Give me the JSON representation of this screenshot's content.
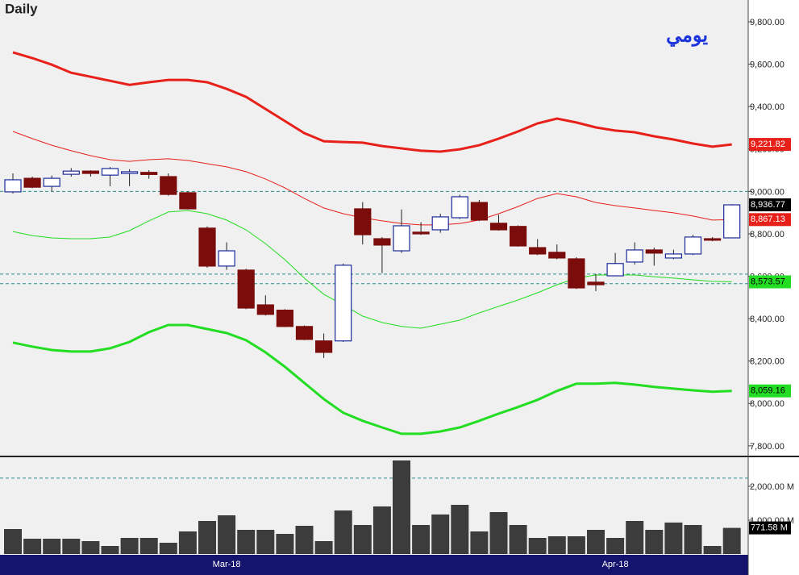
{
  "chart_data": [
    {
      "type": "candlestick",
      "title": "Daily",
      "subtitle": "يومي",
      "categories": [
        null,
        null,
        null,
        null,
        null,
        null,
        null,
        null,
        null,
        null,
        null,
        "Mar-18",
        null,
        null,
        null,
        null,
        null,
        null,
        null,
        null,
        null,
        null,
        null,
        null,
        null,
        null,
        null,
        null,
        null,
        null,
        null,
        "Apr-18",
        null,
        null,
        null,
        null,
        null,
        null
      ],
      "open": [
        8998,
        9062,
        9024,
        9081,
        9096,
        9077,
        9085,
        9090,
        9070,
        8994,
        8827,
        8648,
        8629,
        8465,
        8440,
        8363,
        8295,
        8295,
        8918,
        8777,
        8720,
        8808,
        8819,
        8876,
        8948,
        8850,
        8835,
        8735,
        8713,
        8682,
        8572,
        8602,
        8667,
        8724,
        8686,
        8705,
        8777,
        8781
      ],
      "high": [
        9085,
        9070,
        9075,
        9110,
        9100,
        9115,
        9105,
        9100,
        9085,
        9000,
        8835,
        8760,
        8635,
        8510,
        8445,
        8368,
        8330,
        8660,
        8950,
        8785,
        8915,
        8855,
        8895,
        8985,
        8960,
        8890,
        8840,
        8775,
        8750,
        8690,
        8610,
        8710,
        8760,
        8735,
        8725,
        8795,
        8785,
        8940
      ],
      "low": [
        8990,
        9015,
        9000,
        9070,
        9070,
        9025,
        9025,
        9060,
        8980,
        8915,
        8640,
        8630,
        8445,
        8415,
        8360,
        8298,
        8215,
        8290,
        8750,
        8615,
        8710,
        8795,
        8805,
        8870,
        8860,
        8815,
        8740,
        8700,
        8680,
        8540,
        8530,
        8600,
        8655,
        8650,
        8680,
        8700,
        8765,
        8780
      ],
      "close": [
        9055,
        9020,
        9062,
        9096,
        9085,
        9108,
        9093,
        9080,
        8986,
        8918,
        8648,
        8720,
        8450,
        8420,
        8363,
        8302,
        8241,
        8652,
        8796,
        8747,
        8838,
        8800,
        8880,
        8975,
        8865,
        8819,
        8743,
        8705,
        8686,
        8545,
        8560,
        8660,
        8724,
        8709,
        8705,
        8785,
        8770,
        8936.77
      ],
      "close_last_label": "8,936.77",
      "up_color": "#1c2a9a",
      "down_color": "#7a0c0c",
      "ylim": [
        7750,
        9903
      ],
      "yticks": [
        {
          "value": 7800,
          "label": "7,800.00"
        },
        {
          "value": 8000,
          "label": "8,000.00"
        },
        {
          "value": 8200,
          "label": "8,200.00"
        },
        {
          "value": 8400,
          "label": "8,400.00"
        },
        {
          "value": 8600,
          "label": "8,600.00"
        },
        {
          "value": 8800,
          "label": "8,800.00"
        },
        {
          "value": 9000,
          "label": "9,000.00"
        },
        {
          "value": 9200,
          "label": "9,200.00"
        },
        {
          "value": 9400,
          "label": "9,400.00"
        },
        {
          "value": 9600,
          "label": "9,600.00"
        },
        {
          "value": 9800,
          "label": "9,800.00"
        }
      ],
      "reference_lines": [
        9000,
        8610,
        8565
      ],
      "series": [
        {
          "color": "#e8201a",
          "width": 3,
          "last_label": "9,221.82",
          "values": [
            9656,
            9629,
            9598,
            9560,
            9541,
            9522,
            9503,
            9515,
            9526,
            9526,
            9515,
            9484,
            9446,
            9389,
            9332,
            9275,
            9237,
            9233,
            9230,
            9214,
            9203,
            9192,
            9188,
            9199,
            9218,
            9249,
            9283,
            9321,
            9344,
            9325,
            9302,
            9287,
            9279,
            9260,
            9245,
            9226,
            9211,
            9221.82
          ]
        },
        {
          "color": "#e8201a",
          "width": 1,
          "last_label": "8,867.13",
          "values": [
            9283,
            9249,
            9218,
            9192,
            9169,
            9150,
            9142,
            9150,
            9154,
            9146,
            9131,
            9116,
            9093,
            9059,
            9017,
            8967,
            8922,
            8895,
            8876,
            8861,
            8849,
            8842,
            8842,
            8849,
            8865,
            8895,
            8929,
            8967,
            8990,
            8975,
            8948,
            8933,
            8922,
            8910,
            8899,
            8884,
            8865,
            8867.13
          ]
        },
        {
          "color": "#22dd22",
          "width": 1,
          "last_label": "8,573.57",
          "values": [
            8811,
            8792,
            8781,
            8777,
            8777,
            8785,
            8815,
            8861,
            8903,
            8910,
            8895,
            8865,
            8819,
            8754,
            8678,
            8591,
            8515,
            8465,
            8412,
            8382,
            8363,
            8355,
            8374,
            8393,
            8427,
            8458,
            8488,
            8522,
            8560,
            8591,
            8606,
            8606,
            8606,
            8598,
            8591,
            8583,
            8576,
            8573.57
          ]
        },
        {
          "color": "#22dd22",
          "width": 3,
          "last_label": "8,059.16",
          "values": [
            8287,
            8268,
            8252,
            8245,
            8245,
            8260,
            8290,
            8336,
            8370,
            8370,
            8351,
            8332,
            8298,
            8241,
            8173,
            8097,
            8021,
            7956,
            7918,
            7887,
            7857,
            7857,
            7868,
            7887,
            7918,
            7952,
            7983,
            8017,
            8059,
            8093,
            8093,
            8097,
            8089,
            8078,
            8070,
            8062,
            8055,
            8059.16
          ]
        }
      ]
    },
    {
      "type": "bar",
      "color": "#3c3c3c",
      "values": [
        738,
        452,
        452,
        452,
        381,
        238,
        476,
        476,
        333,
        667,
        976,
        1143,
        714,
        714,
        595,
        833,
        381,
        1286,
        857,
        1405,
        2762,
        857,
        1167,
        1452,
        667,
        1238,
        857,
        476,
        524,
        524,
        714,
        476,
        976,
        714,
        929,
        857,
        238,
        771.58
      ],
      "value_labels": [
        null,
        null,
        null,
        null,
        null,
        null,
        null,
        null,
        null,
        null,
        null,
        null,
        null,
        null,
        null,
        null,
        null,
        null,
        null,
        null,
        null,
        null,
        null,
        null,
        null,
        null,
        null,
        null,
        null,
        null,
        null,
        null,
        null,
        null,
        null,
        null,
        null,
        "771.58 M"
      ],
      "ylim": [
        0,
        2880
      ],
      "yticks": [
        {
          "value": 1000,
          "label": "1,000.00 M"
        },
        {
          "value": 2000,
          "label": "2,000.00 M"
        }
      ],
      "reference_lines": [
        2240
      ]
    }
  ]
}
